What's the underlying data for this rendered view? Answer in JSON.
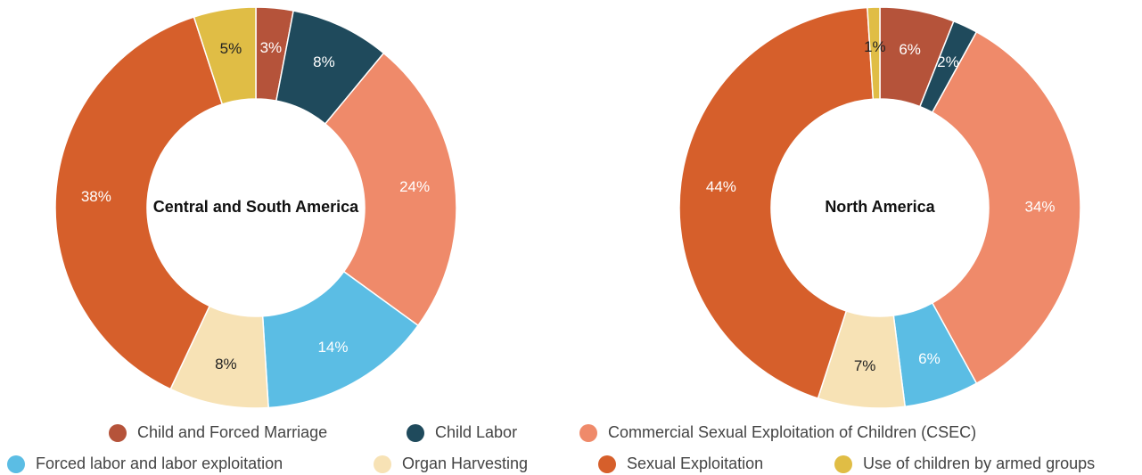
{
  "chart_data": [
    {
      "type": "donut",
      "title": "Central and South America",
      "categories": [
        "Child and Forced Marriage",
        "Child Labor",
        "Commercial Sexual Exploitation of Children (CSEC)",
        "Forced labor and labor exploitation",
        "Organ Harvesting",
        "Sexual Exploitation",
        "Use of children by armed groups"
      ],
      "values": [
        3,
        8,
        24,
        14,
        8,
        38,
        5
      ],
      "value_labels": [
        "3%",
        "8%",
        "24%",
        "14%",
        "8%",
        "38%",
        "5%"
      ],
      "colors": [
        "#b5533a",
        "#1f4a5c",
        "#ef8a6a",
        "#5bbde4",
        "#f7e2b5",
        "#d65f2b",
        "#e0bd45"
      ]
    },
    {
      "type": "donut",
      "title": "North America",
      "categories": [
        "Child and Forced Marriage",
        "Child Labor",
        "Commercial Sexual Exploitation of Children (CSEC)",
        "Forced labor and labor exploitation",
        "Organ Harvesting",
        "Sexual Exploitation",
        "Use of children by armed groups"
      ],
      "values": [
        6,
        2,
        34,
        6,
        7,
        44,
        1
      ],
      "value_labels": [
        "6%",
        "2%",
        "34%",
        "6%",
        "7%",
        "44%",
        "1%"
      ],
      "colors": [
        "#b5533a",
        "#1f4a5c",
        "#ef8a6a",
        "#5bbde4",
        "#f7e2b5",
        "#d65f2b",
        "#e0bd45"
      ]
    }
  ]
}
